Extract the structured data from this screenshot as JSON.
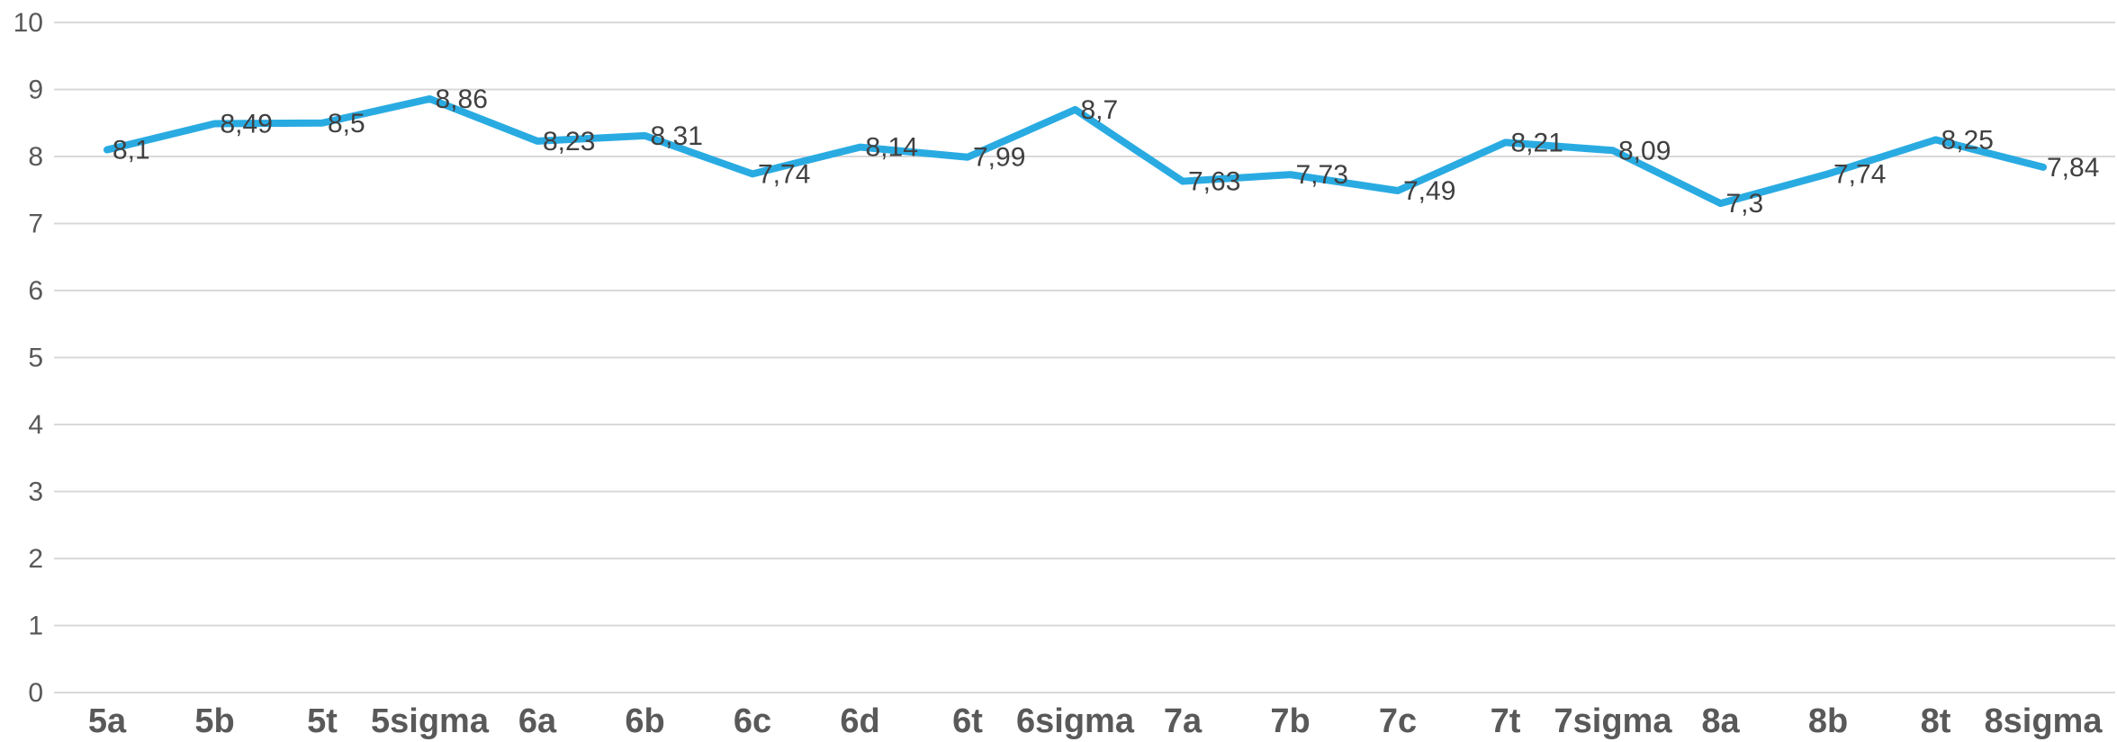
{
  "chart_data": {
    "type": "line",
    "categories": [
      "5a",
      "5b",
      "5t",
      "5sigma",
      "6a",
      "6b",
      "6c",
      "6d",
      "6t",
      "6sigma",
      "7a",
      "7b",
      "7c",
      "7t",
      "7sigma",
      "8a",
      "8b",
      "8t",
      "8sigma"
    ],
    "series": [
      {
        "values": [
          8.1,
          8.49,
          8.5,
          8.86,
          8.23,
          8.31,
          7.74,
          8.14,
          7.99,
          8.7,
          7.63,
          7.73,
          7.49,
          8.21,
          8.09,
          7.3,
          7.74,
          8.25,
          7.84
        ],
        "labels": [
          "8,1",
          "8,49",
          "8,5",
          "8,86",
          "8,23",
          "8,31",
          "7,74",
          "8,14",
          "7,99",
          "8,7",
          "7,63",
          "7,73",
          "7,49",
          "8,21",
          "8,09",
          "7,3",
          "7,74",
          "8,25",
          "7,84"
        ],
        "color": "#29abe2"
      }
    ],
    "ylim": [
      0,
      10
    ],
    "yticks": [
      "0",
      "1",
      "2",
      "3",
      "4",
      "5",
      "6",
      "7",
      "8",
      "9",
      "10"
    ],
    "grid": true,
    "legend": "none",
    "title": "",
    "xlabel": "",
    "ylabel": ""
  }
}
